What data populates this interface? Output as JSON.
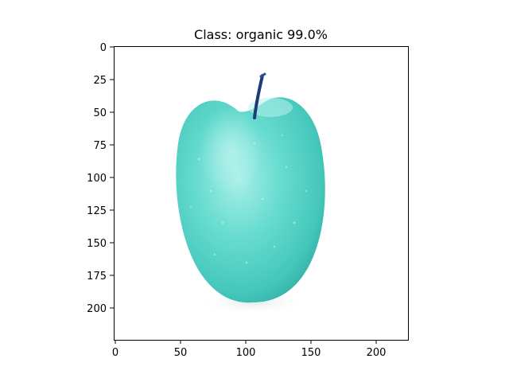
{
  "figure": {
    "title": "Class: organic 99.0%",
    "image_label": "apple"
  },
  "axes": {
    "x_ticks": [
      "0",
      "50",
      "100",
      "150",
      "200"
    ],
    "y_ticks": [
      "0",
      "25",
      "50",
      "75",
      "100",
      "125",
      "150",
      "175",
      "200"
    ]
  },
  "colors": {
    "background": "#ffffff",
    "apple_fill": "#5fd9cc",
    "apple_dark": "#3fc2b6",
    "apple_light": "#a6efe7",
    "stem": "#1f3a7a",
    "axis": "#000000"
  }
}
